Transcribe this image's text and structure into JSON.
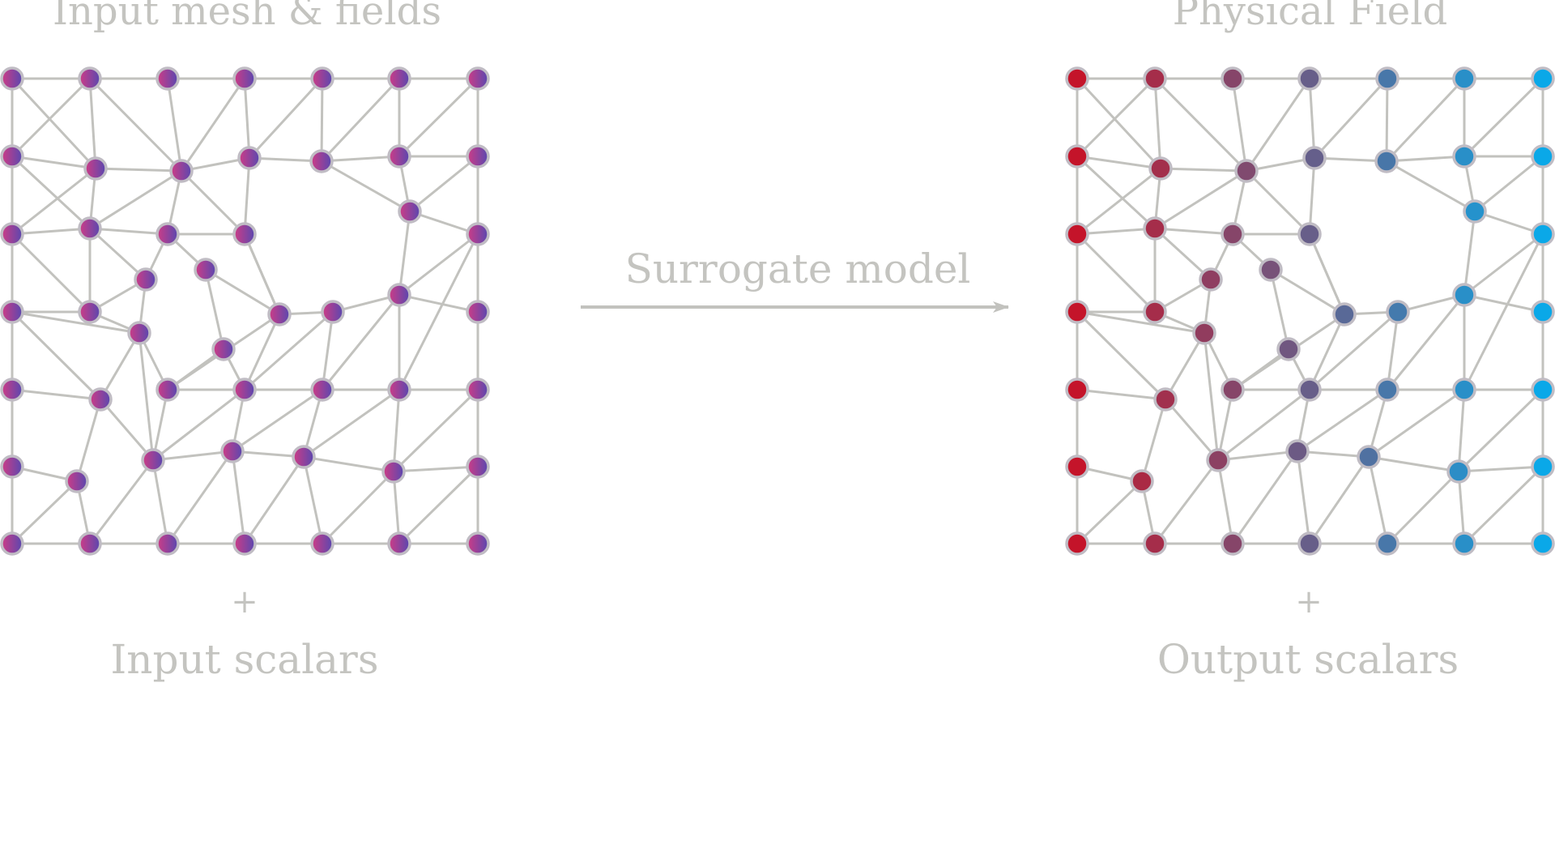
{
  "left_panel": {
    "title": "Input mesh & fields",
    "plus": "+",
    "scalars_label": "Input scalars"
  },
  "right_panel": {
    "title": "Physical Field",
    "plus": "+",
    "scalars_label": "Output scalars"
  },
  "arrow": {
    "label": "Surrogate model"
  },
  "colors": {
    "edge": "#c2c2be",
    "node_stroke": "#c0bcc4",
    "input_gradient": [
      "#ce3c86",
      "#5848b0"
    ],
    "field_start": "#c4142a",
    "field_end": "#0aa8e8",
    "text": "#c4c4c0"
  }
}
